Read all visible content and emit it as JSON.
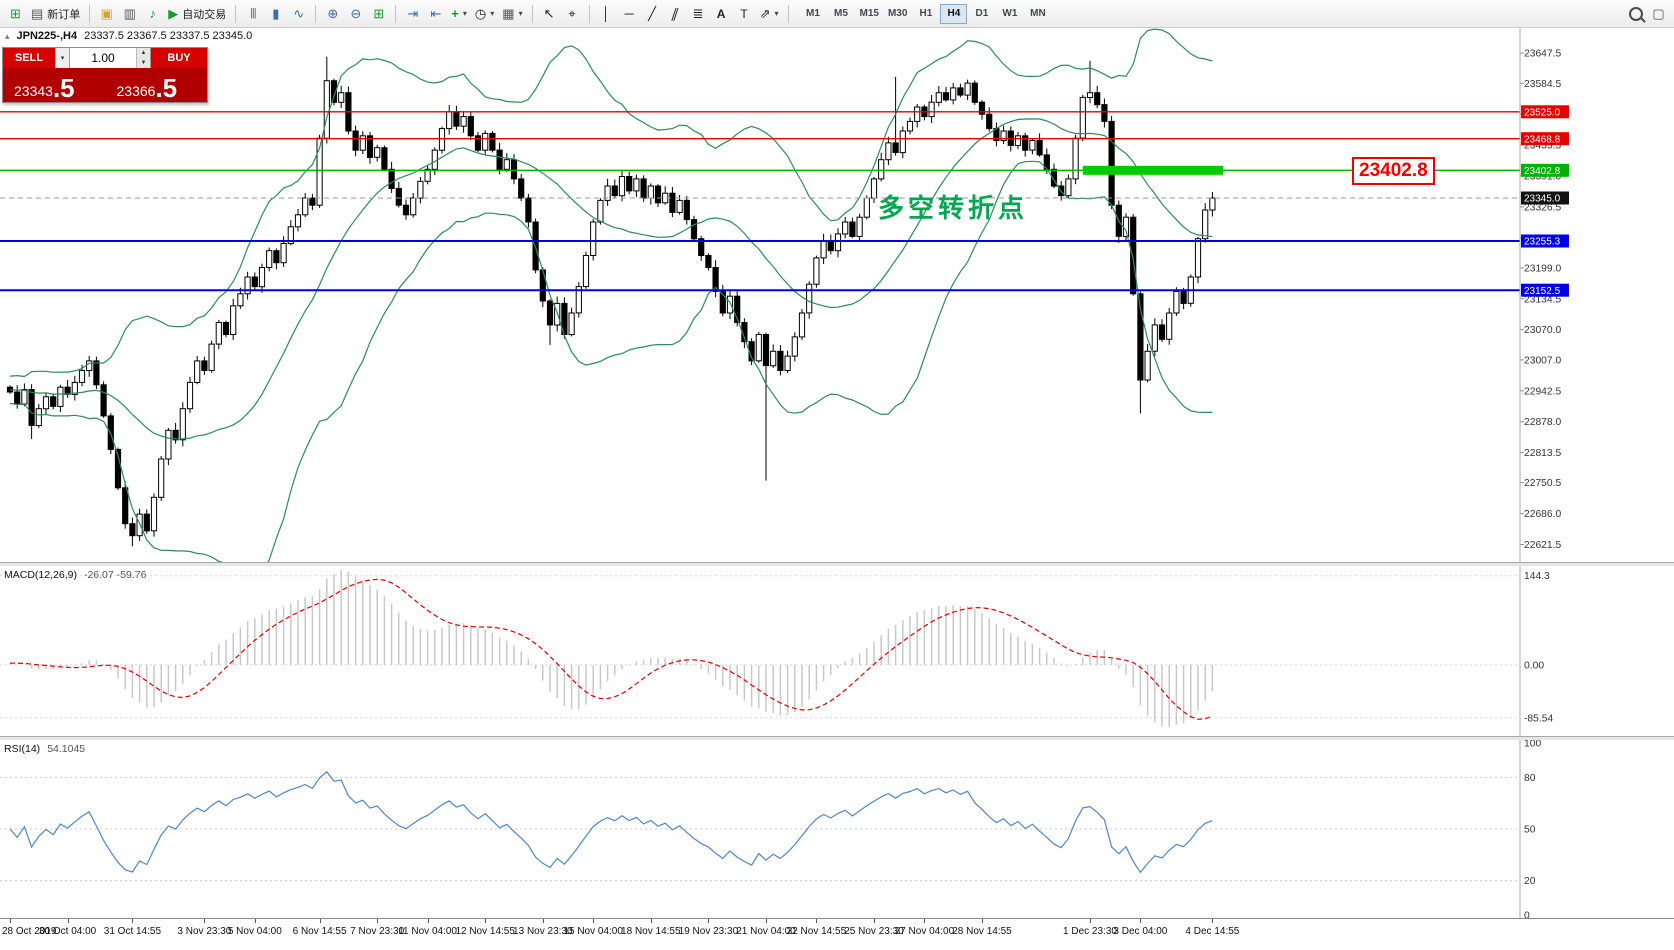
{
  "colors": {
    "hline_red": "#e60000",
    "hline_blue": "#0000e0",
    "hline_green": "#00b200",
    "band_green": "#2e8b57",
    "macd_signal": "#e00000",
    "macd_hist": "#c8c8c8",
    "rsi_line": "#4f86c6",
    "annotation_green": "#00a651",
    "callout_red": "#f00000",
    "panel_red": "#b00000",
    "button_red": "#d60000",
    "current_badge": "#111111"
  },
  "icons": {
    "new_chart": "⊞",
    "new_order": "▤",
    "profiles": "▣",
    "print": "▥",
    "sound": "♪",
    "autotrading_play": "▶",
    "bars_chart": "|||",
    "candle_chart": "▮",
    "line_chart": "∿",
    "zoom_in": "⊕",
    "zoom_out": "⊖",
    "tile_windows": "⊞",
    "auto_scroll": "⇥",
    "chart_shift": "⇤",
    "indicators_add": "+",
    "periods_clock": "◷",
    "templates": "▦",
    "cursor": "↖",
    "crosshair": "⌖",
    "vline": "│",
    "hline": "─",
    "trendline": "╱",
    "channel": "∥",
    "fibonacci": "≣",
    "text_tool": "A",
    "label_tool": "T",
    "arrows_tool": "⇗",
    "caret": "▾",
    "window": "▢"
  },
  "toolbar": {
    "new_order_label": "新订单",
    "autotrading_label": "自动交易",
    "timeframes": [
      "M1",
      "M5",
      "M15",
      "M30",
      "H1",
      "H4",
      "D1",
      "W1",
      "MN"
    ],
    "active_timeframe": "H4"
  },
  "symbol_header": {
    "collapse_glyph": "▴",
    "title": "JPN225-,H4",
    "ohlc": "23337.5 23367.5 23337.5 23345.0"
  },
  "one_click": {
    "sell_label": "SELL",
    "buy_label": "BUY",
    "volume": "1.00",
    "sell_price": "23343",
    "sell_frac": ".5",
    "buy_price": "23366",
    "buy_frac": ".5",
    "spin_up": "▲",
    "spin_down": "▼"
  },
  "annotation": {
    "text": "多空转折点"
  },
  "callout": {
    "text": "23402.8"
  },
  "chart_data": {
    "type": "candlestick",
    "symbol": "JPN225-",
    "timeframe": "H4",
    "y_range": [
      22585,
      23700
    ],
    "first_open": 22950,
    "closes": [
      22940,
      22915,
      22945,
      22870,
      22905,
      22930,
      22910,
      22950,
      22935,
      22960,
      22985,
      23005,
      22955,
      22890,
      22820,
      22740,
      22665,
      22640,
      22685,
      22650,
      22720,
      22800,
      22860,
      22840,
      22905,
      22960,
      23005,
      22985,
      23040,
      23085,
      23060,
      23120,
      23145,
      23180,
      23160,
      23200,
      23235,
      23210,
      23250,
      23285,
      23310,
      23345,
      23330,
      23470,
      23590,
      23545,
      23565,
      23485,
      23445,
      23475,
      23430,
      23450,
      23405,
      23365,
      23330,
      23310,
      23345,
      23380,
      23405,
      23445,
      23490,
      23525,
      23495,
      23515,
      23475,
      23445,
      23480,
      23445,
      23405,
      23425,
      23385,
      23345,
      23295,
      23195,
      23130,
      23080,
      23125,
      23060,
      23105,
      23160,
      23225,
      23295,
      23340,
      23370,
      23350,
      23390,
      23360,
      23385,
      23345,
      23370,
      23335,
      23355,
      23315,
      23340,
      23300,
      23260,
      23225,
      23200,
      23150,
      23105,
      23140,
      23085,
      23045,
      23005,
      23060,
      22995,
      23025,
      22985,
      23015,
      23055,
      23105,
      23165,
      23220,
      23255,
      23235,
      23270,
      23295,
      23265,
      23305,
      23345,
      23385,
      23425,
      23460,
      23440,
      23485,
      23505,
      23535,
      23515,
      23545,
      23565,
      23550,
      23575,
      23560,
      23585,
      23545,
      23520,
      23490,
      23465,
      23485,
      23455,
      23475,
      23445,
      23465,
      23435,
      23405,
      23370,
      23350,
      23385,
      23470,
      23555,
      23565,
      23540,
      23505,
      23330,
      23265,
      23305,
      23145,
      22965,
      23025,
      23080,
      23050,
      23105,
      23150,
      23125,
      23180,
      23260,
      23320,
      23345
    ],
    "wick_overrides": {
      "3": {
        "low": 22842
      },
      "17": {
        "low": 22618
      },
      "44": {
        "high": 23640
      },
      "75": {
        "low": 23038
      },
      "105": {
        "low": 22755
      },
      "123": {
        "high": 23598
      },
      "150": {
        "high": 23632
      },
      "157": {
        "low": 22895
      }
    },
    "axis_labels": [
      "23647.5",
      "23584.5",
      "23520.0",
      "23455.5",
      "23391.0",
      "23326.5",
      "23262.0",
      "23199.0",
      "23134.5",
      "23070.0",
      "23007.0",
      "22942.5",
      "22878.0",
      "22813.5",
      "22750.5",
      "22686.0",
      "22621.5"
    ],
    "hlines": [
      {
        "value": 23525.0,
        "label": "23525.0",
        "color": "#e60000",
        "lw": 1.3
      },
      {
        "value": 23468.8,
        "label": "23468.8",
        "color": "#e60000",
        "lw": 1.3
      },
      {
        "value": 23402.8,
        "label": "23402.8",
        "color": "#00b200",
        "lw": 1.3
      },
      {
        "value": 23255.3,
        "label": "23255.3",
        "color": "#0000e0",
        "lw": 2
      },
      {
        "value": 23152.5,
        "label": "23152.5",
        "color": "#0000e0",
        "lw": 2
      }
    ],
    "thick_segment": {
      "price": 23402.8,
      "from_bar": 149,
      "to_bar": 168.5,
      "height": 9,
      "color": "#00cc00"
    },
    "current_price": {
      "value": 23345.0,
      "label": "23345.0",
      "badge_bg": "#111111"
    },
    "x_labels": [
      {
        "t": "28 Oct 2019",
        "b": 0
      },
      {
        "t": "30 Oct 04:00",
        "b": 8
      },
      {
        "t": "31 Oct 14:55",
        "b": 17
      },
      {
        "t": "3 Nov 23:30",
        "b": 27
      },
      {
        "t": "5 Nov 04:00",
        "b": 34
      },
      {
        "t": "6 Nov 14:55",
        "b": 43
      },
      {
        "t": "7 Nov 23:30",
        "b": 51
      },
      {
        "t": "11 Nov 04:00",
        "b": 58
      },
      {
        "t": "12 Nov 14:55",
        "b": 66
      },
      {
        "t": "13 Nov 23:30",
        "b": 74
      },
      {
        "t": "15 Nov 04:00",
        "b": 81
      },
      {
        "t": "18 Nov 14:55",
        "b": 89
      },
      {
        "t": "19 Nov 23:30",
        "b": 97
      },
      {
        "t": "21 Nov 04:00",
        "b": 105
      },
      {
        "t": "22 Nov 14:55",
        "b": 112
      },
      {
        "t": "25 Nov 23:30",
        "b": 120
      },
      {
        "t": "27 Nov 04:00",
        "b": 127
      },
      {
        "t": "28 Nov 14:55",
        "b": 135
      },
      {
        "t": "1 Dec 23:30",
        "b": 150
      },
      {
        "t": "3 Dec 04:00",
        "b": 157
      },
      {
        "t": "4 Dec 14:55",
        "b": 167
      }
    ],
    "indicators": {
      "bollinger": {
        "period": 20,
        "deviation": 2,
        "color": "#2e8b57"
      },
      "macd": {
        "name": "MACD(12,26,9)",
        "values_text": "-26.07 -59.76",
        "range": [
          -115,
          160
        ],
        "hist_color": "#c8c8c8",
        "signal_color": "#e00000",
        "axis": [
          {
            "v": 144.3,
            "t": "144.3"
          },
          {
            "v": 0,
            "t": "0.00"
          },
          {
            "v": -85.54,
            "t": "-85.54"
          }
        ]
      },
      "rsi": {
        "name": "RSI(14)",
        "value_text": "54.1045",
        "color": "#4f86c6",
        "range": [
          0,
          100
        ],
        "levels": [
          80,
          50,
          20
        ],
        "axis": [
          {
            "v": 100,
            "t": "100"
          },
          {
            "v": 80,
            "t": "80"
          },
          {
            "v": 50,
            "t": "50"
          },
          {
            "v": 20,
            "t": "20"
          },
          {
            "v": 0,
            "t": "0"
          }
        ]
      }
    }
  }
}
